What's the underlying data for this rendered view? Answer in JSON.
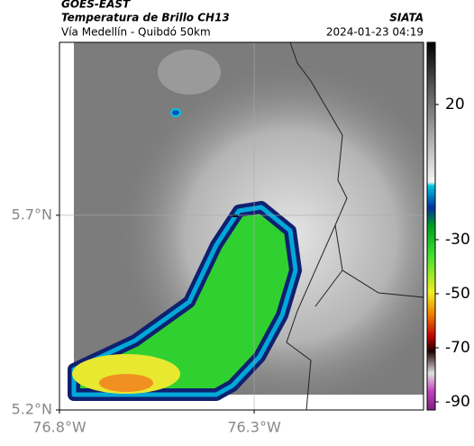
{
  "header": {
    "source": "GOES-EAST",
    "title": "Temperatura de Brillo CH13",
    "org": "SIATA",
    "subtitle": "Vía Medellín - Quibdó 50km",
    "timestamp": "2024-01-23 04:19"
  },
  "map": {
    "xlim": [
      -76.8,
      -75.865
    ],
    "ylim": [
      5.2,
      6.144
    ],
    "xticks": [
      {
        "value": -76.8,
        "label": "76.8°W"
      },
      {
        "value": -76.3,
        "label": "76.3°W"
      }
    ],
    "yticks": [
      {
        "value": 5.2,
        "label": "5.2°N"
      },
      {
        "value": 5.7,
        "label": "5.7°N"
      }
    ],
    "grid": true
  },
  "colorbar": {
    "range": [
      -93,
      43
    ],
    "ticks": [
      20,
      -30,
      -50,
      -70,
      -90
    ]
  }
}
